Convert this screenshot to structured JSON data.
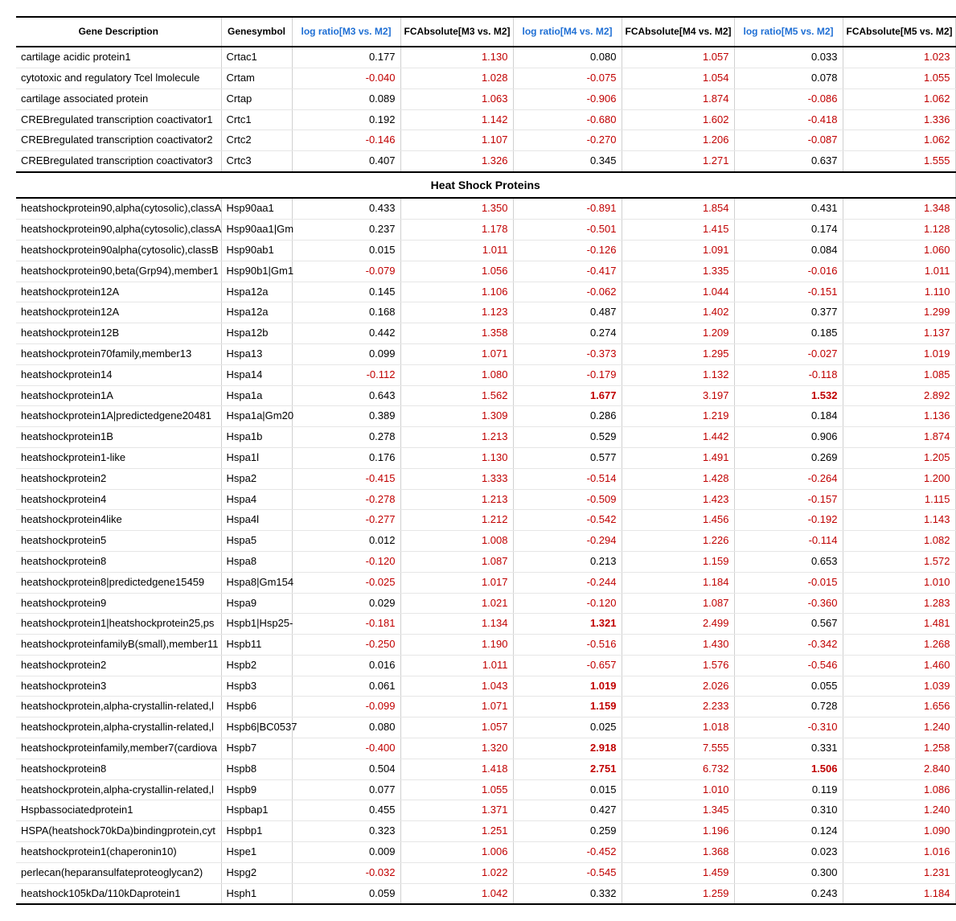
{
  "columns": [
    {
      "label": "Gene Description",
      "align": "center",
      "color": "black"
    },
    {
      "label": "Genesymbol",
      "align": "center",
      "color": "black"
    },
    {
      "label": "log ratio[M3 vs. M2]",
      "align": "center",
      "color": "blue"
    },
    {
      "label": "FCAbsolute[M3 vs. M2]",
      "align": "center",
      "color": "black"
    },
    {
      "label": "log ratio[M4 vs. M2]",
      "align": "center",
      "color": "blue"
    },
    {
      "label": "FCAbsolute[M4 vs. M2]",
      "align": "center",
      "color": "black"
    },
    {
      "label": "log ratio[M5 vs. M2]",
      "align": "center",
      "color": "blue"
    },
    {
      "label": "FCAbsolute[M5 vs. M2]",
      "align": "center",
      "color": "black"
    }
  ],
  "section_label": "Heat Shock Proteins",
  "group1": [
    {
      "desc": "cartilage acidic protein1",
      "sym": "Crtac1",
      "lr3": 0.177,
      "fc3": 1.13,
      "lr4": 0.08,
      "fc4": 1.057,
      "lr5": 0.033,
      "fc5": 1.023
    },
    {
      "desc": "cytotoxic and regulatory Tcel lmolecule",
      "sym": "Crtam",
      "lr3": -0.04,
      "fc3": 1.028,
      "lr4": -0.075,
      "fc4": 1.054,
      "lr5": 0.078,
      "fc5": 1.055
    },
    {
      "desc": "cartilage associated protein",
      "sym": "Crtap",
      "lr3": 0.089,
      "fc3": 1.063,
      "lr4": -0.906,
      "fc4": 1.874,
      "lr5": -0.086,
      "fc5": 1.062
    },
    {
      "desc": "CREBregulated transcription coactivator1",
      "sym": "Crtc1",
      "lr3": 0.192,
      "fc3": 1.142,
      "lr4": -0.68,
      "fc4": 1.602,
      "lr5": -0.418,
      "fc5": 1.336
    },
    {
      "desc": "CREBregulated transcription coactivator2",
      "sym": "Crtc2",
      "lr3": -0.146,
      "fc3": 1.107,
      "lr4": -0.27,
      "fc4": 1.206,
      "lr5": -0.087,
      "fc5": 1.062
    },
    {
      "desc": "CREBregulated transcription coactivator3",
      "sym": "Crtc3",
      "lr3": 0.407,
      "fc3": 1.326,
      "lr4": 0.345,
      "fc4": 1.271,
      "lr5": 0.637,
      "fc5": 1.555
    }
  ],
  "group2": [
    {
      "desc": "heatshockprotein90,alpha(cytosolic),classA",
      "sym": "Hsp90aa1",
      "lr3": 0.433,
      "fc3": 1.35,
      "lr4": -0.891,
      "fc4": 1.854,
      "lr5": 0.431,
      "fc5": 1.348
    },
    {
      "desc": "heatshockprotein90,alpha(cytosolic),classA",
      "sym": "Hsp90aa1|Gm",
      "lr3": 0.237,
      "fc3": 1.178,
      "lr4": -0.501,
      "fc4": 1.415,
      "lr5": 0.174,
      "fc5": 1.128
    },
    {
      "desc": "heatshockprotein90alpha(cytosolic),classB",
      "sym": "Hsp90ab1",
      "lr3": 0.015,
      "fc3": 1.011,
      "lr4": -0.126,
      "fc4": 1.091,
      "lr5": 0.084,
      "fc5": 1.06
    },
    {
      "desc": "heatshockprotein90,beta(Grp94),member1",
      "sym": "Hsp90b1|Gm1",
      "lr3": -0.079,
      "fc3": 1.056,
      "lr4": -0.417,
      "fc4": 1.335,
      "lr5": -0.016,
      "fc5": 1.011
    },
    {
      "desc": "heatshockprotein12A",
      "sym": "Hspa12a",
      "lr3": 0.145,
      "fc3": 1.106,
      "lr4": -0.062,
      "fc4": 1.044,
      "lr5": -0.151,
      "fc5": 1.11
    },
    {
      "desc": "heatshockprotein12A",
      "sym": "Hspa12a",
      "lr3": 0.168,
      "fc3": 1.123,
      "lr4": 0.487,
      "fc4": 1.402,
      "lr5": 0.377,
      "fc5": 1.299
    },
    {
      "desc": "heatshockprotein12B",
      "sym": "Hspa12b",
      "lr3": 0.442,
      "fc3": 1.358,
      "lr4": 0.274,
      "fc4": 1.209,
      "lr5": 0.185,
      "fc5": 1.137
    },
    {
      "desc": "heatshockprotein70family,member13",
      "sym": "Hspa13",
      "lr3": 0.099,
      "fc3": 1.071,
      "lr4": -0.373,
      "fc4": 1.295,
      "lr5": -0.027,
      "fc5": 1.019
    },
    {
      "desc": "heatshockprotein14",
      "sym": "Hspa14",
      "lr3": -0.112,
      "fc3": 1.08,
      "lr4": -0.179,
      "fc4": 1.132,
      "lr5": -0.118,
      "fc5": 1.085
    },
    {
      "desc": "heatshockprotein1A",
      "sym": "Hspa1a",
      "lr3": 0.643,
      "fc3": 1.562,
      "lr4": 1.677,
      "fc4": 3.197,
      "lr5": 1.532,
      "fc5": 2.892,
      "bold4": true,
      "bold5": true
    },
    {
      "desc": "heatshockprotein1A|predictedgene20481",
      "sym": "Hspa1a|Gm20",
      "lr3": 0.389,
      "fc3": 1.309,
      "lr4": 0.286,
      "fc4": 1.219,
      "lr5": 0.184,
      "fc5": 1.136
    },
    {
      "desc": "heatshockprotein1B",
      "sym": "Hspa1b",
      "lr3": 0.278,
      "fc3": 1.213,
      "lr4": 0.529,
      "fc4": 1.442,
      "lr5": 0.906,
      "fc5": 1.874
    },
    {
      "desc": "heatshockprotein1-like",
      "sym": "Hspa1l",
      "lr3": 0.176,
      "fc3": 1.13,
      "lr4": 0.577,
      "fc4": 1.491,
      "lr5": 0.269,
      "fc5": 1.205
    },
    {
      "desc": "heatshockprotein2",
      "sym": "Hspa2",
      "lr3": -0.415,
      "fc3": 1.333,
      "lr4": -0.514,
      "fc4": 1.428,
      "lr5": -0.264,
      "fc5": 1.2
    },
    {
      "desc": "heatshockprotein4",
      "sym": "Hspa4",
      "lr3": -0.278,
      "fc3": 1.213,
      "lr4": -0.509,
      "fc4": 1.423,
      "lr5": -0.157,
      "fc5": 1.115
    },
    {
      "desc": "heatshockprotein4like",
      "sym": "Hspa4l",
      "lr3": -0.277,
      "fc3": 1.212,
      "lr4": -0.542,
      "fc4": 1.456,
      "lr5": -0.192,
      "fc5": 1.143
    },
    {
      "desc": "heatshockprotein5",
      "sym": "Hspa5",
      "lr3": 0.012,
      "fc3": 1.008,
      "lr4": -0.294,
      "fc4": 1.226,
      "lr5": -0.114,
      "fc5": 1.082
    },
    {
      "desc": "heatshockprotein8",
      "sym": "Hspa8",
      "lr3": -0.12,
      "fc3": 1.087,
      "lr4": 0.213,
      "fc4": 1.159,
      "lr5": 0.653,
      "fc5": 1.572
    },
    {
      "desc": "heatshockprotein8|predictedgene15459",
      "sym": "Hspa8|Gm154",
      "lr3": -0.025,
      "fc3": 1.017,
      "lr4": -0.244,
      "fc4": 1.184,
      "lr5": -0.015,
      "fc5": 1.01
    },
    {
      "desc": "heatshockprotein9",
      "sym": "Hspa9",
      "lr3": 0.029,
      "fc3": 1.021,
      "lr4": -0.12,
      "fc4": 1.087,
      "lr5": -0.36,
      "fc5": 1.283
    },
    {
      "desc": "heatshockprotein1|heatshockprotein25,ps",
      "sym": "Hspb1|Hsp25-",
      "lr3": -0.181,
      "fc3": 1.134,
      "lr4": 1.321,
      "fc4": 2.499,
      "lr5": 0.567,
      "fc5": 1.481,
      "bold4": true
    },
    {
      "desc": "heatshockproteinfamilyB(small),member11",
      "sym": "Hspb11",
      "lr3": -0.25,
      "fc3": 1.19,
      "lr4": -0.516,
      "fc4": 1.43,
      "lr5": -0.342,
      "fc5": 1.268
    },
    {
      "desc": "heatshockprotein2",
      "sym": "Hspb2",
      "lr3": 0.016,
      "fc3": 1.011,
      "lr4": -0.657,
      "fc4": 1.576,
      "lr5": -0.546,
      "fc5": 1.46
    },
    {
      "desc": "heatshockprotein3",
      "sym": "Hspb3",
      "lr3": 0.061,
      "fc3": 1.043,
      "lr4": 1.019,
      "fc4": 2.026,
      "lr5": 0.055,
      "fc5": 1.039,
      "bold4": true
    },
    {
      "desc": "heatshockprotein,alpha-crystallin-related,l",
      "sym": "Hspb6",
      "lr3": -0.099,
      "fc3": 1.071,
      "lr4": 1.159,
      "fc4": 2.233,
      "lr5": 0.728,
      "fc5": 1.656,
      "bold4": true
    },
    {
      "desc": "heatshockprotein,alpha-crystallin-related,l",
      "sym": "Hspb6|BC0537",
      "lr3": 0.08,
      "fc3": 1.057,
      "lr4": 0.025,
      "fc4": 1.018,
      "lr5": -0.31,
      "fc5": 1.24
    },
    {
      "desc": "heatshockproteinfamily,member7(cardiova",
      "sym": "Hspb7",
      "lr3": -0.4,
      "fc3": 1.32,
      "lr4": 2.918,
      "fc4": 7.555,
      "lr5": 0.331,
      "fc5": 1.258,
      "bold4": true
    },
    {
      "desc": "heatshockprotein8",
      "sym": "Hspb8",
      "lr3": 0.504,
      "fc3": 1.418,
      "lr4": 2.751,
      "fc4": 6.732,
      "lr5": 1.506,
      "fc5": 2.84,
      "bold4": true,
      "bold5": true
    },
    {
      "desc": "heatshockprotein,alpha-crystallin-related,l",
      "sym": "Hspb9",
      "lr3": 0.077,
      "fc3": 1.055,
      "lr4": 0.015,
      "fc4": 1.01,
      "lr5": 0.119,
      "fc5": 1.086
    },
    {
      "desc": "Hspbassociatedprotein1",
      "sym": "Hspbap1",
      "lr3": 0.455,
      "fc3": 1.371,
      "lr4": 0.427,
      "fc4": 1.345,
      "lr5": 0.31,
      "fc5": 1.24
    },
    {
      "desc": "HSPA(heatshock70kDa)bindingprotein,cyt",
      "sym": "Hspbp1",
      "lr3": 0.323,
      "fc3": 1.251,
      "lr4": 0.259,
      "fc4": 1.196,
      "lr5": 0.124,
      "fc5": 1.09
    },
    {
      "desc": "heatshockprotein1(chaperonin10)",
      "sym": "Hspe1",
      "lr3": 0.009,
      "fc3": 1.006,
      "lr4": -0.452,
      "fc4": 1.368,
      "lr5": 0.023,
      "fc5": 1.016
    },
    {
      "desc": "perlecan(heparansulfateproteoglycan2)",
      "sym": "Hspg2",
      "lr3": -0.032,
      "fc3": 1.022,
      "lr4": -0.545,
      "fc4": 1.459,
      "lr5": 0.3,
      "fc5": 1.231
    },
    {
      "desc": "heatshock105kDa/110kDaprotein1",
      "sym": "Hsph1",
      "lr3": 0.059,
      "fc3": 1.042,
      "lr4": 0.332,
      "fc4": 1.259,
      "lr5": 0.243,
      "fc5": 1.184
    }
  ]
}
